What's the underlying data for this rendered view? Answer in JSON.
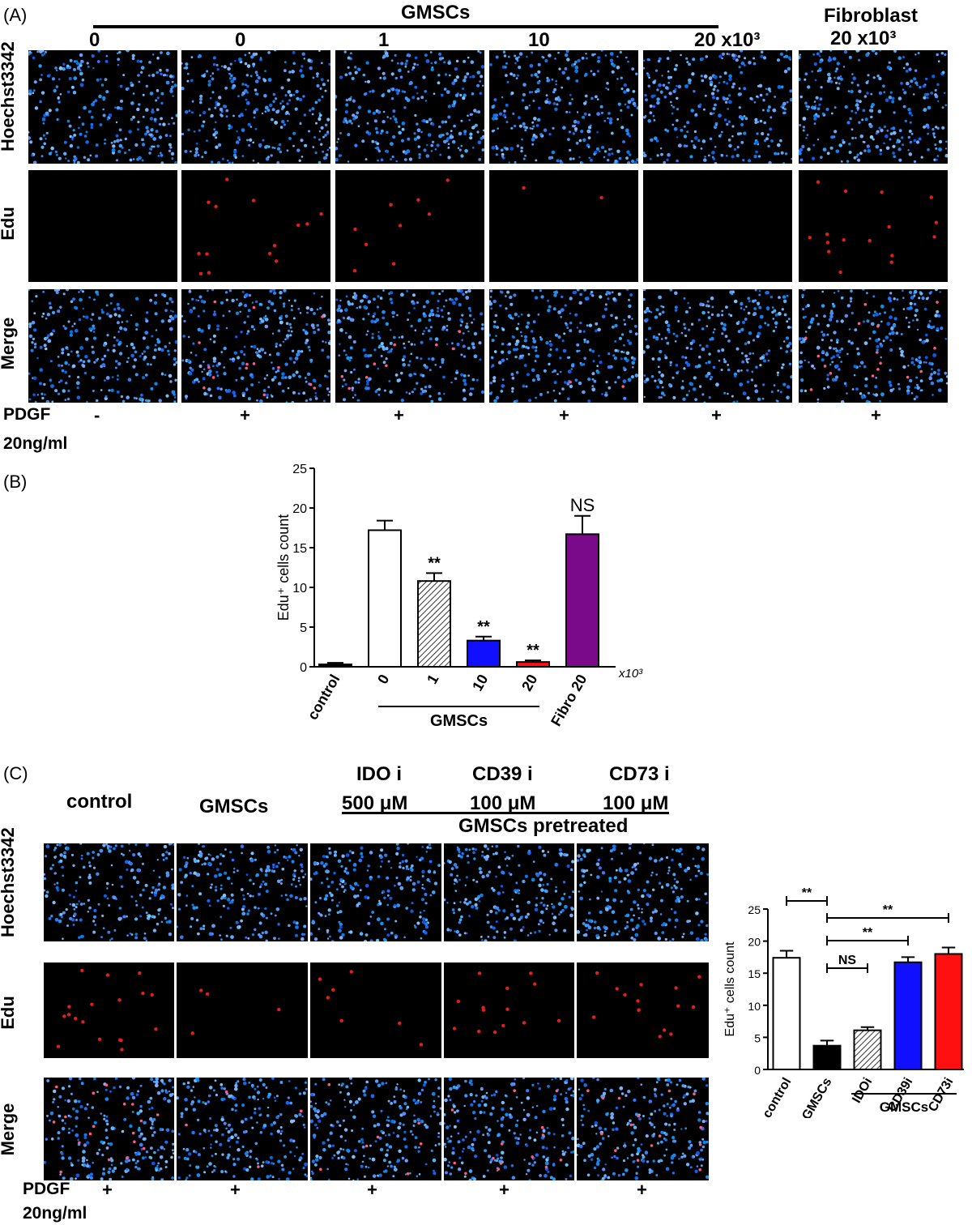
{
  "panel_a": {
    "label": "(A)",
    "group_label": "GMSCs",
    "columns": [
      "0",
      "0",
      "1",
      "10",
      "20 x10³"
    ],
    "fibro_label_1": "Fibroblast",
    "fibro_label_2": "20 x10³",
    "rows": [
      "Hoechst3342",
      "Edu",
      "Merge"
    ],
    "pdgf_label": "PDGF",
    "pdgf_unit": "20ng/ml",
    "pdgf_signs": [
      "-",
      "+",
      "+",
      "+",
      "+",
      "+"
    ]
  },
  "panel_b": {
    "label": "(B)"
  },
  "panel_c": {
    "label": "(C)",
    "col_control": "control",
    "col_gmscs": "GMSCs",
    "inhibitors": [
      {
        "name": "IDO i",
        "dose": "500 μM"
      },
      {
        "name": "CD39 i",
        "dose": "100 μM"
      },
      {
        "name": "CD73 i",
        "dose": "100 μM"
      }
    ],
    "pretreated_label": "GMSCs pretreated",
    "rows": [
      "Hoechst3342",
      "Edu",
      "Merge"
    ],
    "pdgf_label": "PDGF",
    "pdgf_unit": "20ng/ml",
    "pdgf_signs": [
      "+",
      "+",
      "+",
      "+",
      "+"
    ]
  },
  "colors": {
    "nuclei": "#1f6bd6",
    "edu": "#e0201a",
    "blue_bar": "#1010ff",
    "red_bar": "#ff1010",
    "purple_bar": "#7a0a8a"
  },
  "chart_data": [
    {
      "type": "bar",
      "categories": [
        "control",
        "0",
        "1",
        "10",
        "20",
        "Fibro 20"
      ],
      "values": [
        0.3,
        17.2,
        10.8,
        3.3,
        0.6,
        16.7
      ],
      "errors": [
        0.2,
        1.2,
        1.0,
        0.5,
        0.2,
        2.3
      ],
      "fills": [
        "#000000",
        "#ffffff",
        "hatch",
        "#1010ff",
        "#ff1010",
        "#7a0a8a"
      ],
      "significance": [
        "",
        "",
        "**",
        "**",
        "**",
        "NS"
      ],
      "ylabel": "Edu⁺ cells count",
      "ylim": [
        0,
        25
      ],
      "yticks": [
        "0",
        "5",
        "10",
        "15",
        "20",
        "25"
      ],
      "group_label": "GMSCs",
      "unit_label": "x10³"
    },
    {
      "type": "bar",
      "categories": [
        "control",
        "GMSCs",
        "IDOi",
        "CD39i",
        "CD73i"
      ],
      "values": [
        17.4,
        3.7,
        6.1,
        16.7,
        18.0
      ],
      "errors": [
        1.1,
        0.8,
        0.5,
        0.8,
        1.0
      ],
      "fills": [
        "#ffffff",
        "#000000",
        "hatch",
        "#1010ff",
        "#ff1010"
      ],
      "comparisons": [
        {
          "from": 0,
          "to": 1,
          "label": "**"
        },
        {
          "from": 1,
          "to": 4,
          "label": "**"
        },
        {
          "from": 1,
          "to": 3,
          "label": "**"
        },
        {
          "from": 1,
          "to": 2,
          "label": "NS"
        }
      ],
      "ylabel": "Edu⁺ cells count",
      "ylim": [
        0,
        25
      ],
      "yticks": [
        "0",
        "5",
        "10",
        "15",
        "20",
        "25"
      ],
      "group_label": "GMSCs"
    }
  ]
}
